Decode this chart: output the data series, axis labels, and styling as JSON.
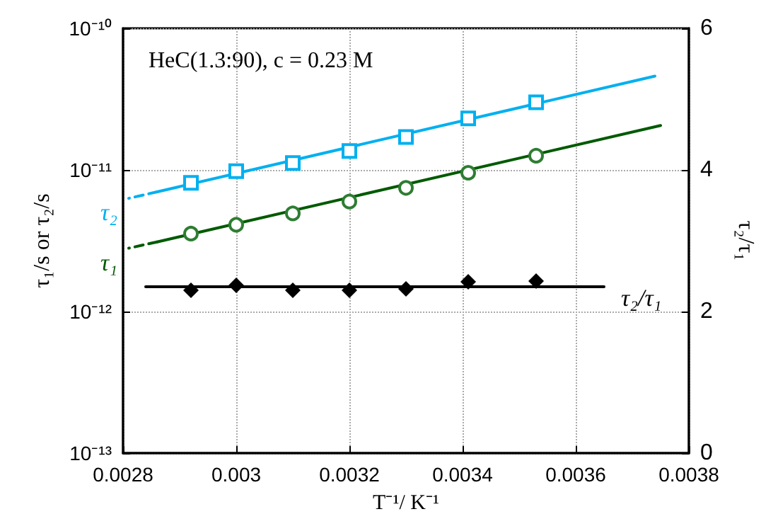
{
  "chart_data": {
    "type": "scatter",
    "xlabel": "T⁻¹/ K⁻¹",
    "ylabel": "τ₁/s or τ₂/s",
    "y2label": "τ₂/τ₁",
    "annotations": [
      "HeC(1.3:90), c = 0.23 M"
    ],
    "xlim": [
      0.0028,
      0.0038
    ],
    "xticks": [
      0.0028,
      0.003,
      0.0032,
      0.0034,
      0.0036,
      0.0038
    ],
    "ylim": [
      1e-13,
      1e-10
    ],
    "yticks": [
      {
        "value": 1e-13,
        "label": "10⁻¹³"
      },
      {
        "value": 1e-12,
        "label": "10⁻¹²"
      },
      {
        "value": 1e-11,
        "label": "10⁻¹¹"
      },
      {
        "value": 1e-10,
        "label": "10⁻¹⁰"
      }
    ],
    "y2lim": [
      0,
      6
    ],
    "y2ticks": [
      0,
      2,
      4,
      6
    ],
    "log": "y",
    "grid": true,
    "series": [
      {
        "type": "scatter",
        "marker": "square",
        "color": "#00b0f0",
        "x": [
          0.00292,
          0.003,
          0.0031,
          0.0032,
          0.0033,
          0.00341,
          0.00353
        ],
        "values": [
          8.1e-12,
          9.8e-12,
          1.12e-11,
          1.36e-11,
          1.71e-11,
          2.31e-11,
          3e-11
        ]
      },
      {
        "type": "line",
        "line_style": "solid",
        "marker": "none",
        "color": "#00b0f0",
        "x": [
          0.00286,
          0.00374
        ],
        "values": [
          7e-12,
          4.6e-11
        ]
      },
      {
        "type": "line",
        "name": "τ₂",
        "line_style": "dashed",
        "marker": "none",
        "color": "#00b0f0",
        "x": [
          0.00281,
          0.00286
        ],
        "values": [
          6.3e-12,
          7e-12
        ]
      },
      {
        "type": "scatter",
        "marker": "circle",
        "color": "#2e7d32",
        "x": [
          0.00292,
          0.003,
          0.0031,
          0.0032,
          0.0033,
          0.00341,
          0.00353
        ],
        "values": [
          3.55e-12,
          4.1e-12,
          4.93e-12,
          5.98e-12,
          7.47e-12,
          9.55e-12,
          1.26e-11
        ]
      },
      {
        "type": "line",
        "line_style": "solid",
        "marker": "none",
        "color": "#005a00",
        "x": [
          0.00286,
          0.00375
        ],
        "values": [
          3.1e-12,
          2.06e-11
        ]
      },
      {
        "type": "line",
        "name": "τ₁",
        "line_style": "dashed",
        "marker": "none",
        "color": "#005a00",
        "x": [
          0.00281,
          0.00286
        ],
        "values": [
          2.8e-12,
          3.1e-12
        ]
      },
      {
        "type": "scatter",
        "axis": "y2",
        "marker": "diamond",
        "color": "#000000",
        "x": [
          0.00292,
          0.003,
          0.0031,
          0.0032,
          0.0033,
          0.00341,
          0.00353
        ],
        "values": [
          2.3,
          2.37,
          2.3,
          2.3,
          2.32,
          2.42,
          2.43
        ]
      },
      {
        "type": "line",
        "axis": "y2",
        "name": "τ₂/τ₁",
        "line_style": "solid",
        "marker": "none",
        "color": "#000000",
        "x": [
          0.00284,
          0.00365
        ],
        "values": [
          2.35,
          2.35
        ]
      }
    ]
  }
}
